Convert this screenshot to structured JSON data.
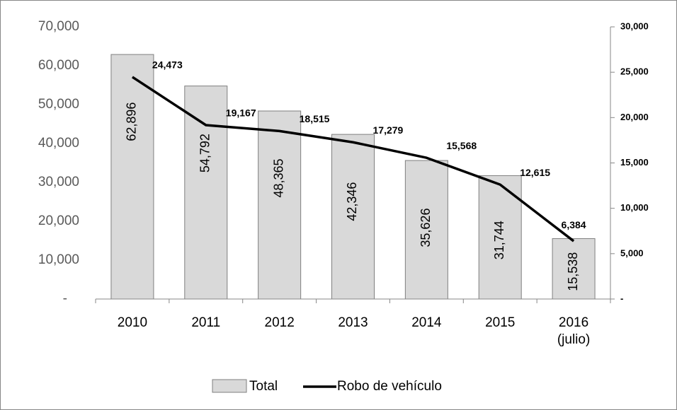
{
  "chart_data": {
    "type": "bar_line",
    "categories": [
      "2010",
      "2011",
      "2012",
      "2013",
      "2014",
      "2015",
      "2016\n(julio)"
    ],
    "series": [
      {
        "name": "Total",
        "type": "bar",
        "color": "#d9d9d9",
        "values": [
          62896,
          54792,
          48365,
          42346,
          35626,
          31744,
          15538
        ],
        "value_labels": [
          "62,896",
          "54,792",
          "48,365",
          "42,346",
          "35,626",
          "31,744",
          "15,538"
        ]
      },
      {
        "name": "Robo de vehículo",
        "type": "line",
        "axis": "y2",
        "color": "#000000",
        "values": [
          24473,
          19167,
          18515,
          17279,
          15568,
          12615,
          6384
        ],
        "value_labels": [
          "24,473",
          "19,167",
          "18,515",
          "17,279",
          "15,568",
          "12,615",
          "6,384"
        ]
      }
    ],
    "ylim": [
      0,
      70000
    ],
    "yticks": [
      {
        "value": 0,
        "label": "-"
      },
      {
        "value": 10000,
        "label": "10,000"
      },
      {
        "value": 20000,
        "label": "20,000"
      },
      {
        "value": 30000,
        "label": "30,000"
      },
      {
        "value": 40000,
        "label": "40,000"
      },
      {
        "value": 50000,
        "label": "50,000"
      },
      {
        "value": 60000,
        "label": "60,000"
      },
      {
        "value": 70000,
        "label": "70,000"
      }
    ],
    "y2lim": [
      0,
      30000
    ],
    "y2ticks": [
      {
        "value": 0,
        "label": "-"
      },
      {
        "value": 5000,
        "label": "5,000"
      },
      {
        "value": 10000,
        "label": "10,000"
      },
      {
        "value": 15000,
        "label": "15,000"
      },
      {
        "value": 20000,
        "label": "20,000"
      },
      {
        "value": 25000,
        "label": "25,000"
      },
      {
        "value": 30000,
        "label": "30,000"
      }
    ],
    "legend": "bottom"
  }
}
